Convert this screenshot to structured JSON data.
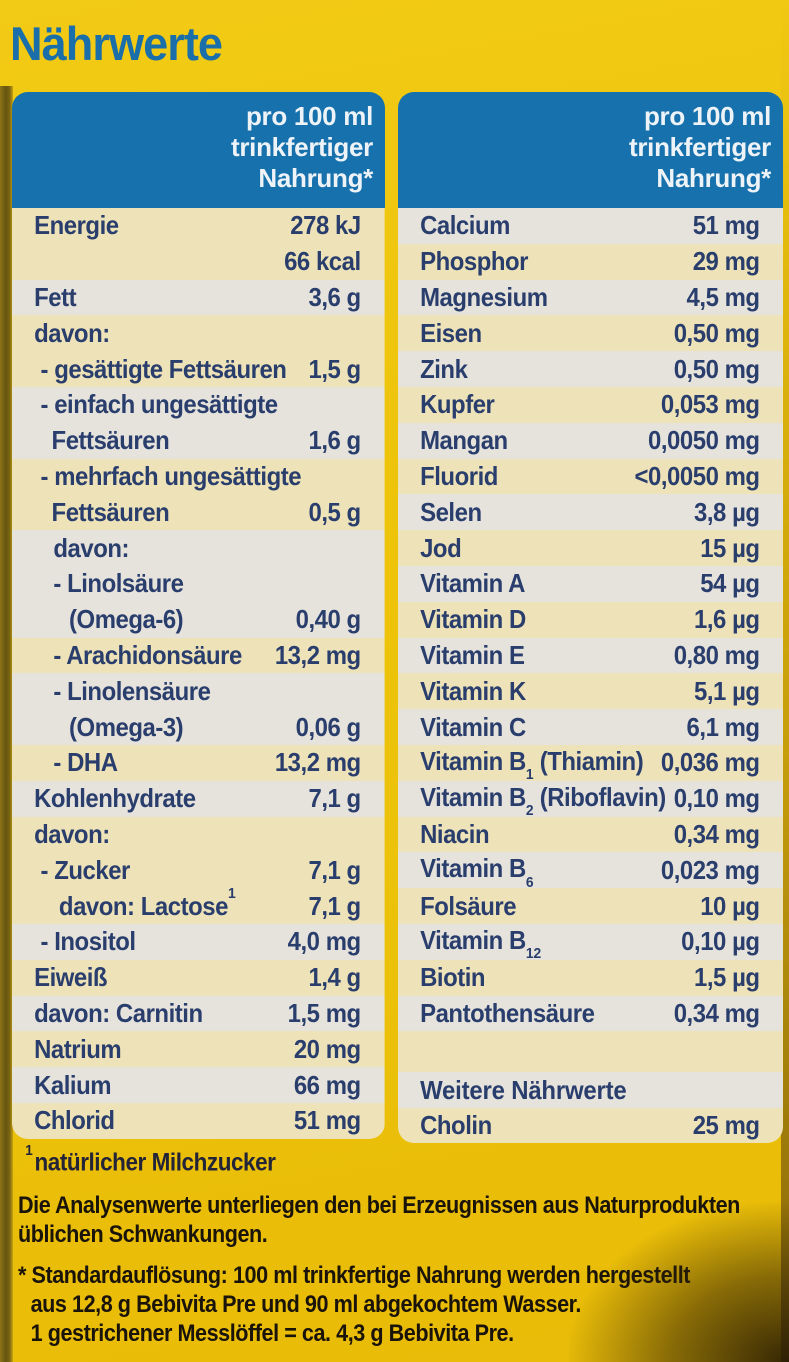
{
  "title": "Nährwerte",
  "colors": {
    "background_yellow": "#eec40b",
    "header_blue": "#1771ac",
    "title_blue": "#1a6ea9",
    "row_cream": "#eee3b8",
    "row_gray": "#e6e3dc",
    "text_navy": "#2a3e6d",
    "footnote_black": "#191309"
  },
  "left_table": {
    "header": "pro 100 ml\ntrinkfertiger\nNahrung*",
    "rows": [
      {
        "label": "Energie",
        "value": "278 kJ",
        "bg": "cream",
        "indent": 0
      },
      {
        "label": "",
        "value": "66 kcal",
        "bg": "cream",
        "indent": 0
      },
      {
        "label": "Fett",
        "value": "3,6 g",
        "bg": "gray",
        "indent": 0
      },
      {
        "label": "davon:",
        "value": "",
        "bg": "cream",
        "indent": 0
      },
      {
        "label": "- gesättigte Fettsäuren",
        "value": "1,5 g",
        "bg": "cream",
        "indent": 1
      },
      {
        "label": "- einfach ungesättigte",
        "value": "",
        "bg": "gray",
        "indent": 1
      },
      {
        "label": "Fettsäuren",
        "value": "1,6 g",
        "bg": "gray",
        "indent": 2
      },
      {
        "label": "- mehrfach ungesättigte",
        "value": "",
        "bg": "cream",
        "indent": 1
      },
      {
        "label": "Fettsäuren",
        "value": "0,5 g",
        "bg": "cream",
        "indent": 2
      },
      {
        "label": "davon:",
        "value": "",
        "bg": "gray",
        "indent": 3
      },
      {
        "label": "- Linolsäure",
        "value": "",
        "bg": "gray",
        "indent": 3
      },
      {
        "label": "(Omega-6)",
        "value": "0,40 g",
        "bg": "gray",
        "indent": 5
      },
      {
        "label": "- Arachidonsäure",
        "value": "13,2 mg",
        "bg": "cream",
        "indent": 3
      },
      {
        "label": "- Linolensäure",
        "value": "",
        "bg": "gray",
        "indent": 3
      },
      {
        "label": "(Omega-3)",
        "value": "0,06 g",
        "bg": "gray",
        "indent": 5
      },
      {
        "label": "- DHA",
        "value": "13,2 mg",
        "bg": "cream",
        "indent": 3
      },
      {
        "label": "Kohlenhydrate",
        "value": "7,1 g",
        "bg": "gray",
        "indent": 0
      },
      {
        "label": "davon:",
        "value": "",
        "bg": "cream",
        "indent": 0
      },
      {
        "label": "- Zucker",
        "value": "7,1 g",
        "bg": "cream",
        "indent": 1
      },
      {
        "label": "davon: Lactose^1^",
        "value": "7,1 g",
        "bg": "cream",
        "indent": 4
      },
      {
        "label": "- Inositol",
        "value": "4,0 mg",
        "bg": "gray",
        "indent": 1
      },
      {
        "label": "Eiweiß",
        "value": "1,4 g",
        "bg": "cream",
        "indent": 0
      },
      {
        "label": "davon: Carnitin",
        "value": "1,5 mg",
        "bg": "gray",
        "indent": 0
      },
      {
        "label": "Natrium",
        "value": "20 mg",
        "bg": "cream",
        "indent": 0
      },
      {
        "label": "Kalium",
        "value": "66 mg",
        "bg": "gray",
        "indent": 0
      },
      {
        "label": "Chlorid",
        "value": "51 mg",
        "bg": "cream",
        "indent": 0
      }
    ]
  },
  "right_table": {
    "header": "pro 100 ml\ntrinkfertiger\nNahrung*",
    "rows": [
      {
        "label": "Calcium",
        "value": "51 mg",
        "bg": "gray",
        "indent": 0
      },
      {
        "label": "Phosphor",
        "value": "29 mg",
        "bg": "cream",
        "indent": 0
      },
      {
        "label": "Magnesium",
        "value": "4,5 mg",
        "bg": "gray",
        "indent": 0
      },
      {
        "label": "Eisen",
        "value": "0,50 mg",
        "bg": "cream",
        "indent": 0
      },
      {
        "label": "Zink",
        "value": "0,50 mg",
        "bg": "gray",
        "indent": 0
      },
      {
        "label": "Kupfer",
        "value": "0,053 mg",
        "bg": "cream",
        "indent": 0
      },
      {
        "label": "Mangan",
        "value": "0,0050 mg",
        "bg": "gray",
        "indent": 0
      },
      {
        "label": "Fluorid",
        "value": "<0,0050 mg",
        "bg": "cream",
        "indent": 0
      },
      {
        "label": "Selen",
        "value": "3,8 µg",
        "bg": "gray",
        "indent": 0
      },
      {
        "label": "Jod",
        "value": "15 µg",
        "bg": "cream",
        "indent": 0
      },
      {
        "label": "Vitamin A",
        "value": "54 µg",
        "bg": "gray",
        "indent": 0
      },
      {
        "label": "Vitamin D",
        "value": "1,6 µg",
        "bg": "cream",
        "indent": 0
      },
      {
        "label": "Vitamin E",
        "value": "0,80 mg",
        "bg": "gray",
        "indent": 0
      },
      {
        "label": "Vitamin K",
        "value": "5,1 µg",
        "bg": "cream",
        "indent": 0
      },
      {
        "label": "Vitamin C",
        "value": "6,1 mg",
        "bg": "gray",
        "indent": 0
      },
      {
        "label": "Vitamin B~1~ (Thiamin)",
        "value": "0,036 mg",
        "bg": "cream",
        "indent": 0
      },
      {
        "label": "Vitamin B~2~ (Riboflavin)",
        "value": "0,10 mg",
        "bg": "gray",
        "indent": 0
      },
      {
        "label": "Niacin",
        "value": "0,34 mg",
        "bg": "cream",
        "indent": 0
      },
      {
        "label": "Vitamin B~6~",
        "value": "0,023 mg",
        "bg": "gray",
        "indent": 0
      },
      {
        "label": "Folsäure",
        "value": "10 µg",
        "bg": "cream",
        "indent": 0
      },
      {
        "label": "Vitamin B~12~",
        "value": "0,10 µg",
        "bg": "gray",
        "indent": 0
      },
      {
        "label": "Biotin",
        "value": "1,5 µg",
        "bg": "cream",
        "indent": 0
      },
      {
        "label": "Pantothensäure",
        "value": "0,34 mg",
        "bg": "gray",
        "indent": 0
      },
      {
        "type": "spacer",
        "bg": "cream"
      },
      {
        "type": "heading",
        "label": "Weitere Nährwerte",
        "value": "",
        "bg": "gray",
        "indent": 0
      },
      {
        "type": "last",
        "label": "Cholin",
        "value": "25 mg",
        "bg": "cream",
        "indent": 0
      }
    ]
  },
  "footnotes": {
    "milk_sugar_sup": "1",
    "milk_sugar": "natürlicher Milchzucker",
    "analysis": "Die Analysenwerte unterliegen den bei Erzeugnissen aus Naturprodukten\nüblichen Schwankungen.",
    "std_marker": "* ",
    "std_bold": "Standardauflösung:",
    "std_line1_rest": " 100 ml trinkfertige Nahrung werden hergestellt",
    "std_line2": "aus 12,8 g Bebivita Pre und 90 ml abgekochtem Wasser.",
    "std_line3": "1 gestrichener Messlöffel = ca. 4,3 g Bebivita Pre."
  }
}
